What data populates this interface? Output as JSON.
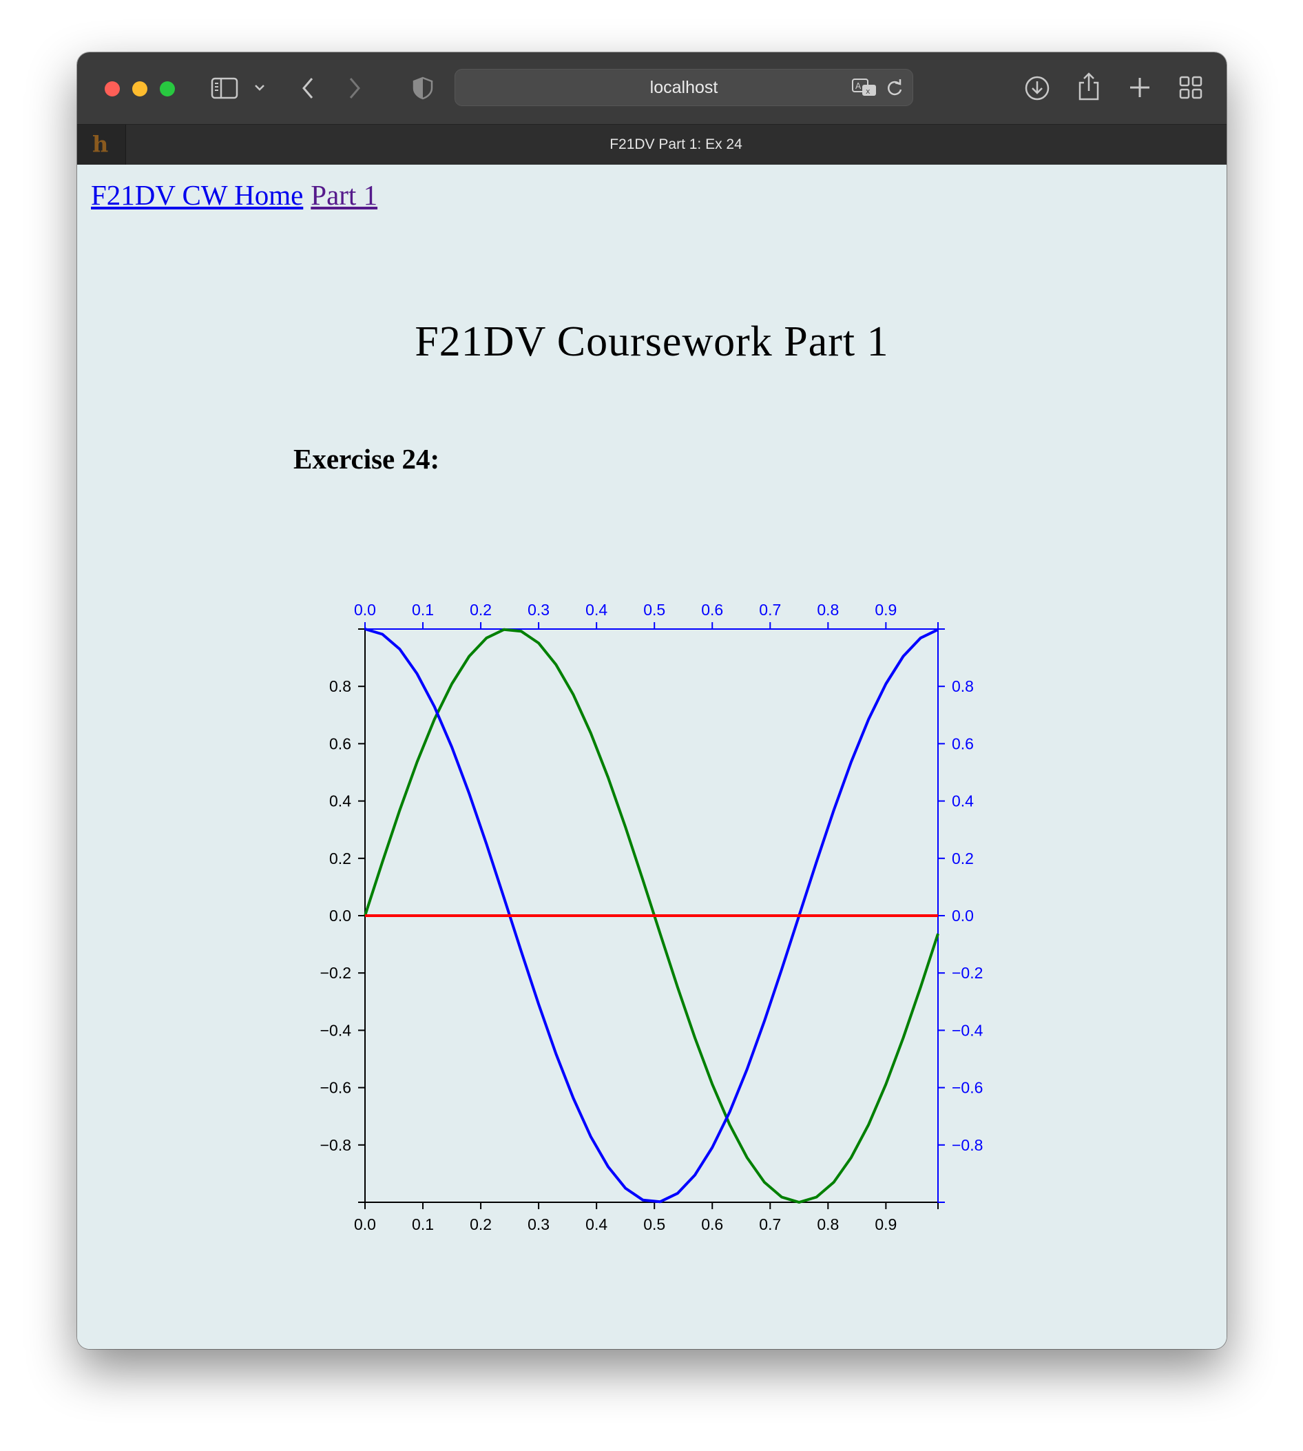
{
  "browser": {
    "address": "localhost",
    "tab_title": "F21DV Part 1: Ex 24",
    "tab_favicon": "h",
    "icons": [
      "sidebar-icon",
      "chevron-down-icon",
      "back-icon",
      "forward-icon",
      "shield-icon",
      "translate-icon",
      "reload-icon",
      "download-icon",
      "share-icon",
      "new-tab-icon",
      "tab-overview-icon"
    ]
  },
  "nav": {
    "home_label": "F21DV CW Home",
    "part_label": "Part 1"
  },
  "page": {
    "title": "F21DV Coursework Part 1",
    "exercise": "Exercise 24:"
  },
  "colors": {
    "sin": "#008000",
    "cos": "#0000ff",
    "zero": "#ff0000",
    "axis": "#000000",
    "axis_secondary": "#0000ff",
    "background": "#e2edef"
  },
  "chart_data": {
    "type": "line",
    "title": "",
    "xlabel": "",
    "ylabel": "",
    "xlim": [
      0,
      0.99
    ],
    "ylim": [
      -1,
      1
    ],
    "x_ticks": [
      "0.0",
      "0.1",
      "0.2",
      "0.3",
      "0.4",
      "0.5",
      "0.6",
      "0.7",
      "0.8",
      "0.9"
    ],
    "y_ticks": [
      "0.8",
      "0.6",
      "0.4",
      "0.2",
      "0.0",
      "−0.2",
      "−0.4",
      "−0.6",
      "−0.8"
    ],
    "axes": [
      "bottom",
      "left",
      "top (blue)",
      "right (blue)"
    ],
    "x": [
      0.0,
      0.03,
      0.06,
      0.09,
      0.12,
      0.15,
      0.18,
      0.21,
      0.24,
      0.27,
      0.3,
      0.33,
      0.36,
      0.39,
      0.42,
      0.45,
      0.48,
      0.51,
      0.54,
      0.57,
      0.6,
      0.63,
      0.66,
      0.69,
      0.72,
      0.75,
      0.78,
      0.81,
      0.84,
      0.87,
      0.9,
      0.93,
      0.96,
      0.99
    ],
    "series": [
      {
        "values": [
          0,
          0.187,
          0.368,
          0.536,
          0.685,
          0.809,
          0.905,
          0.969,
          0.998,
          0.992,
          0.951,
          0.876,
          0.771,
          0.637,
          0.482,
          0.309,
          0.125,
          -0.063,
          -0.249,
          -0.426,
          -0.588,
          -0.729,
          -0.844,
          -0.93,
          -0.982,
          -1.0,
          -0.982,
          -0.93,
          -0.844,
          -0.729,
          -0.588,
          -0.426,
          -0.249,
          -0.063
        ]
      },
      {
        "values": [
          1,
          0.982,
          0.93,
          0.844,
          0.729,
          0.588,
          0.426,
          0.249,
          0.063,
          -0.125,
          -0.309,
          -0.482,
          -0.637,
          -0.771,
          -0.876,
          -0.951,
          -0.992,
          -0.998,
          -0.969,
          -0.905,
          -0.809,
          -0.685,
          -0.536,
          -0.368,
          -0.187,
          0,
          0.187,
          0.368,
          0.536,
          0.685,
          0.809,
          0.905,
          0.969,
          0.998
        ]
      },
      {
        "values": [
          0,
          0,
          0,
          0,
          0,
          0,
          0,
          0,
          0,
          0,
          0,
          0,
          0,
          0,
          0,
          0,
          0,
          0,
          0,
          0,
          0,
          0,
          0,
          0,
          0,
          0,
          0,
          0,
          0,
          0,
          0,
          0,
          0,
          0
        ]
      }
    ],
    "grid": false,
    "legend": "none"
  }
}
